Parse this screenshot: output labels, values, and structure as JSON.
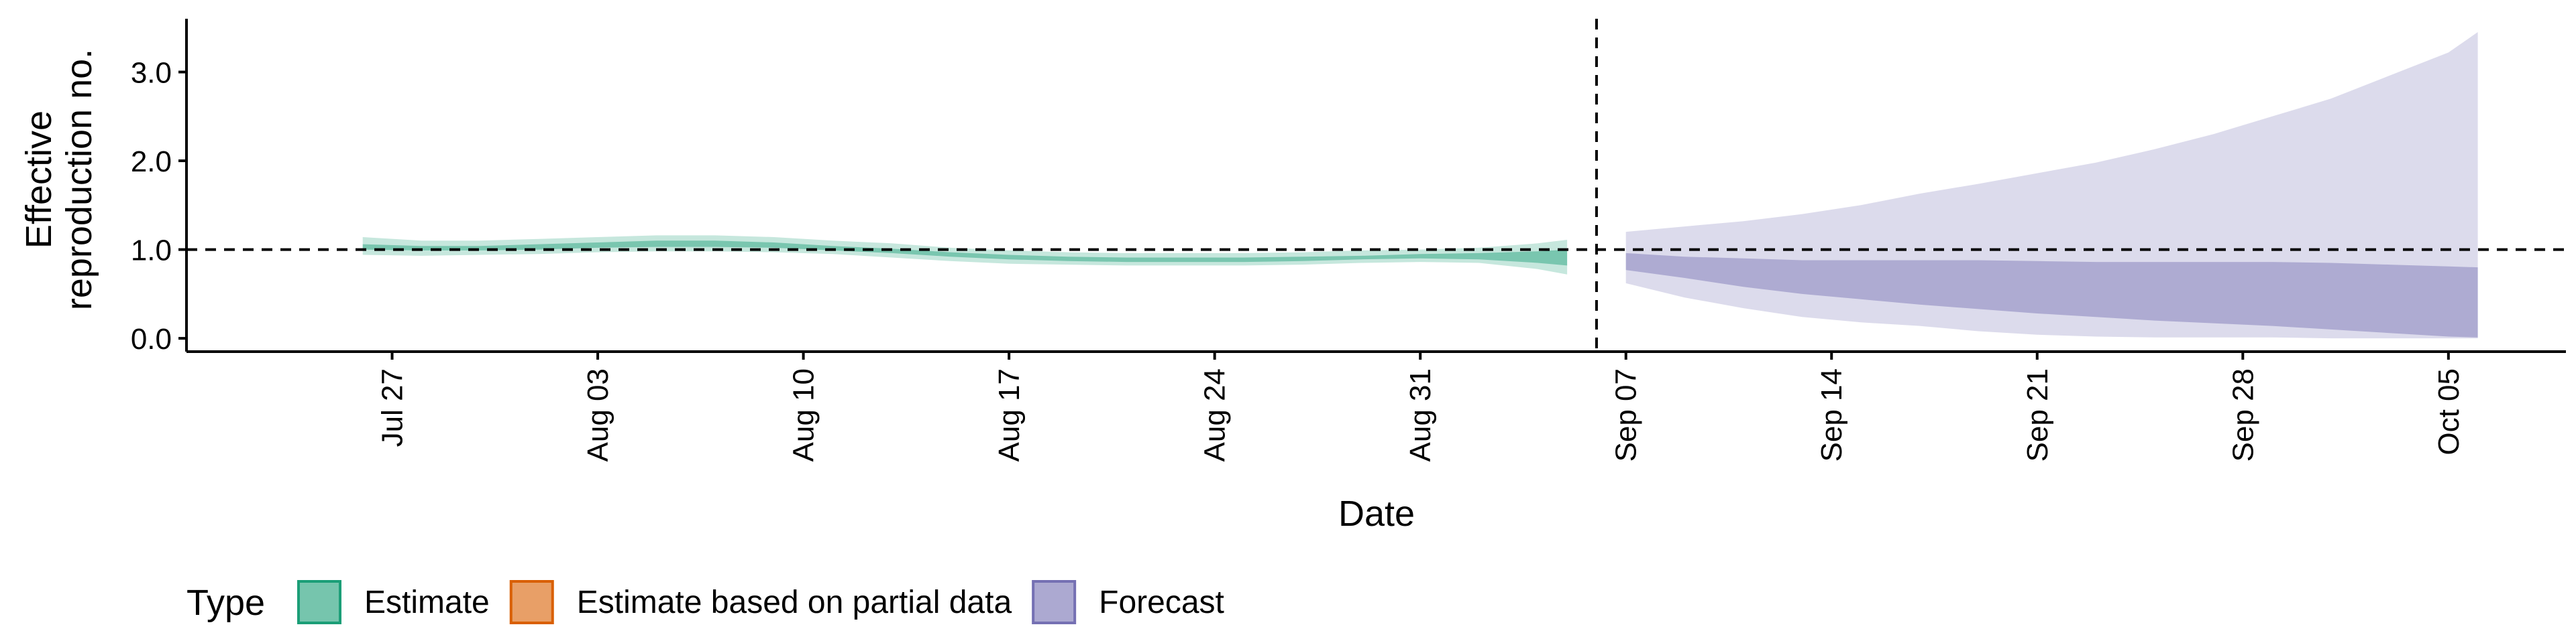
{
  "chart_data": {
    "type": "area",
    "title": "",
    "xlabel": "Date",
    "ylabel_line1": "Effective",
    "ylabel_line2": "reproduction no.",
    "x_range": [
      "2020-07-20",
      "2020-10-09"
    ],
    "ylim": [
      -0.15,
      3.6
    ],
    "x_ticks": [
      {
        "date": "2020-07-27",
        "label": "Jul 27"
      },
      {
        "date": "2020-08-03",
        "label": "Aug 03"
      },
      {
        "date": "2020-08-10",
        "label": "Aug 10"
      },
      {
        "date": "2020-08-17",
        "label": "Aug 17"
      },
      {
        "date": "2020-08-24",
        "label": "Aug 24"
      },
      {
        "date": "2020-08-31",
        "label": "Aug 31"
      },
      {
        "date": "2020-09-07",
        "label": "Sep 07"
      },
      {
        "date": "2020-09-14",
        "label": "Sep 14"
      },
      {
        "date": "2020-09-21",
        "label": "Sep 21"
      },
      {
        "date": "2020-09-28",
        "label": "Sep 28"
      },
      {
        "date": "2020-10-05",
        "label": "Oct 05"
      }
    ],
    "y_ticks": [
      {
        "value": 0,
        "label": "0.0"
      },
      {
        "value": 1,
        "label": "1.0"
      },
      {
        "value": 2,
        "label": "2.0"
      },
      {
        "value": 3,
        "label": "3.0"
      }
    ],
    "reference_lines": {
      "horizontal_y": 1.0,
      "vertical_date": "2020-09-06"
    },
    "grid": false,
    "legend": {
      "position": "bottom-left",
      "title": "Type",
      "items": [
        {
          "label": "Estimate",
          "color": "#1b9e77"
        },
        {
          "label": "Estimate based on partial data",
          "color": "#d95f02"
        },
        {
          "label": "Forecast",
          "color": "#7570b3"
        }
      ]
    },
    "series": [
      {
        "name": "Estimate",
        "color": "#1b9e77",
        "dates": [
          "2020-07-26",
          "2020-07-28",
          "2020-07-30",
          "2020-08-01",
          "2020-08-03",
          "2020-08-05",
          "2020-08-07",
          "2020-08-09",
          "2020-08-11",
          "2020-08-13",
          "2020-08-15",
          "2020-08-17",
          "2020-08-19",
          "2020-08-21",
          "2020-08-23",
          "2020-08-25",
          "2020-08-27",
          "2020-08-29",
          "2020-08-31",
          "2020-09-02",
          "2020-09-04",
          "2020-09-05"
        ],
        "outer_upper": [
          1.14,
          1.1,
          1.1,
          1.12,
          1.14,
          1.16,
          1.16,
          1.14,
          1.1,
          1.07,
          1.02,
          0.99,
          0.97,
          0.96,
          0.96,
          0.96,
          0.97,
          0.99,
          1.0,
          1.02,
          1.07,
          1.11
        ],
        "outer_lower": [
          0.94,
          0.93,
          0.94,
          0.95,
          0.97,
          0.98,
          0.98,
          0.97,
          0.95,
          0.91,
          0.87,
          0.84,
          0.83,
          0.82,
          0.82,
          0.82,
          0.83,
          0.85,
          0.86,
          0.85,
          0.78,
          0.72
        ],
        "inner_upper": [
          1.06,
          1.04,
          1.04,
          1.06,
          1.08,
          1.1,
          1.1,
          1.08,
          1.04,
          1.01,
          0.97,
          0.94,
          0.92,
          0.91,
          0.91,
          0.91,
          0.92,
          0.93,
          0.95,
          0.96,
          0.98,
          1.0
        ],
        "inner_lower": [
          1.0,
          0.99,
          0.99,
          1.0,
          1.02,
          1.03,
          1.03,
          1.02,
          0.99,
          0.96,
          0.92,
          0.89,
          0.87,
          0.86,
          0.86,
          0.86,
          0.87,
          0.89,
          0.9,
          0.89,
          0.85,
          0.82
        ]
      },
      {
        "name": "Forecast",
        "color": "#7570b3",
        "dates": [
          "2020-09-07",
          "2020-09-09",
          "2020-09-11",
          "2020-09-13",
          "2020-09-15",
          "2020-09-17",
          "2020-09-19",
          "2020-09-21",
          "2020-09-23",
          "2020-09-25",
          "2020-09-27",
          "2020-09-29",
          "2020-10-01",
          "2020-10-03",
          "2020-10-05",
          "2020-10-06"
        ],
        "outer_upper": [
          1.2,
          1.26,
          1.32,
          1.4,
          1.5,
          1.63,
          1.74,
          1.86,
          1.98,
          2.13,
          2.3,
          2.5,
          2.7,
          2.96,
          3.22,
          3.45
        ],
        "outer_lower": [
          0.62,
          0.46,
          0.34,
          0.24,
          0.18,
          0.14,
          0.08,
          0.04,
          0.02,
          0.01,
          0.01,
          0.01,
          0.0,
          0.0,
          0.0,
          0.0
        ],
        "inner_upper": [
          0.96,
          0.92,
          0.9,
          0.88,
          0.88,
          0.88,
          0.88,
          0.87,
          0.86,
          0.86,
          0.86,
          0.86,
          0.85,
          0.83,
          0.81,
          0.8
        ],
        "inner_lower": [
          0.77,
          0.68,
          0.58,
          0.5,
          0.44,
          0.38,
          0.33,
          0.28,
          0.24,
          0.2,
          0.17,
          0.14,
          0.1,
          0.06,
          0.02,
          0.01
        ]
      }
    ]
  }
}
